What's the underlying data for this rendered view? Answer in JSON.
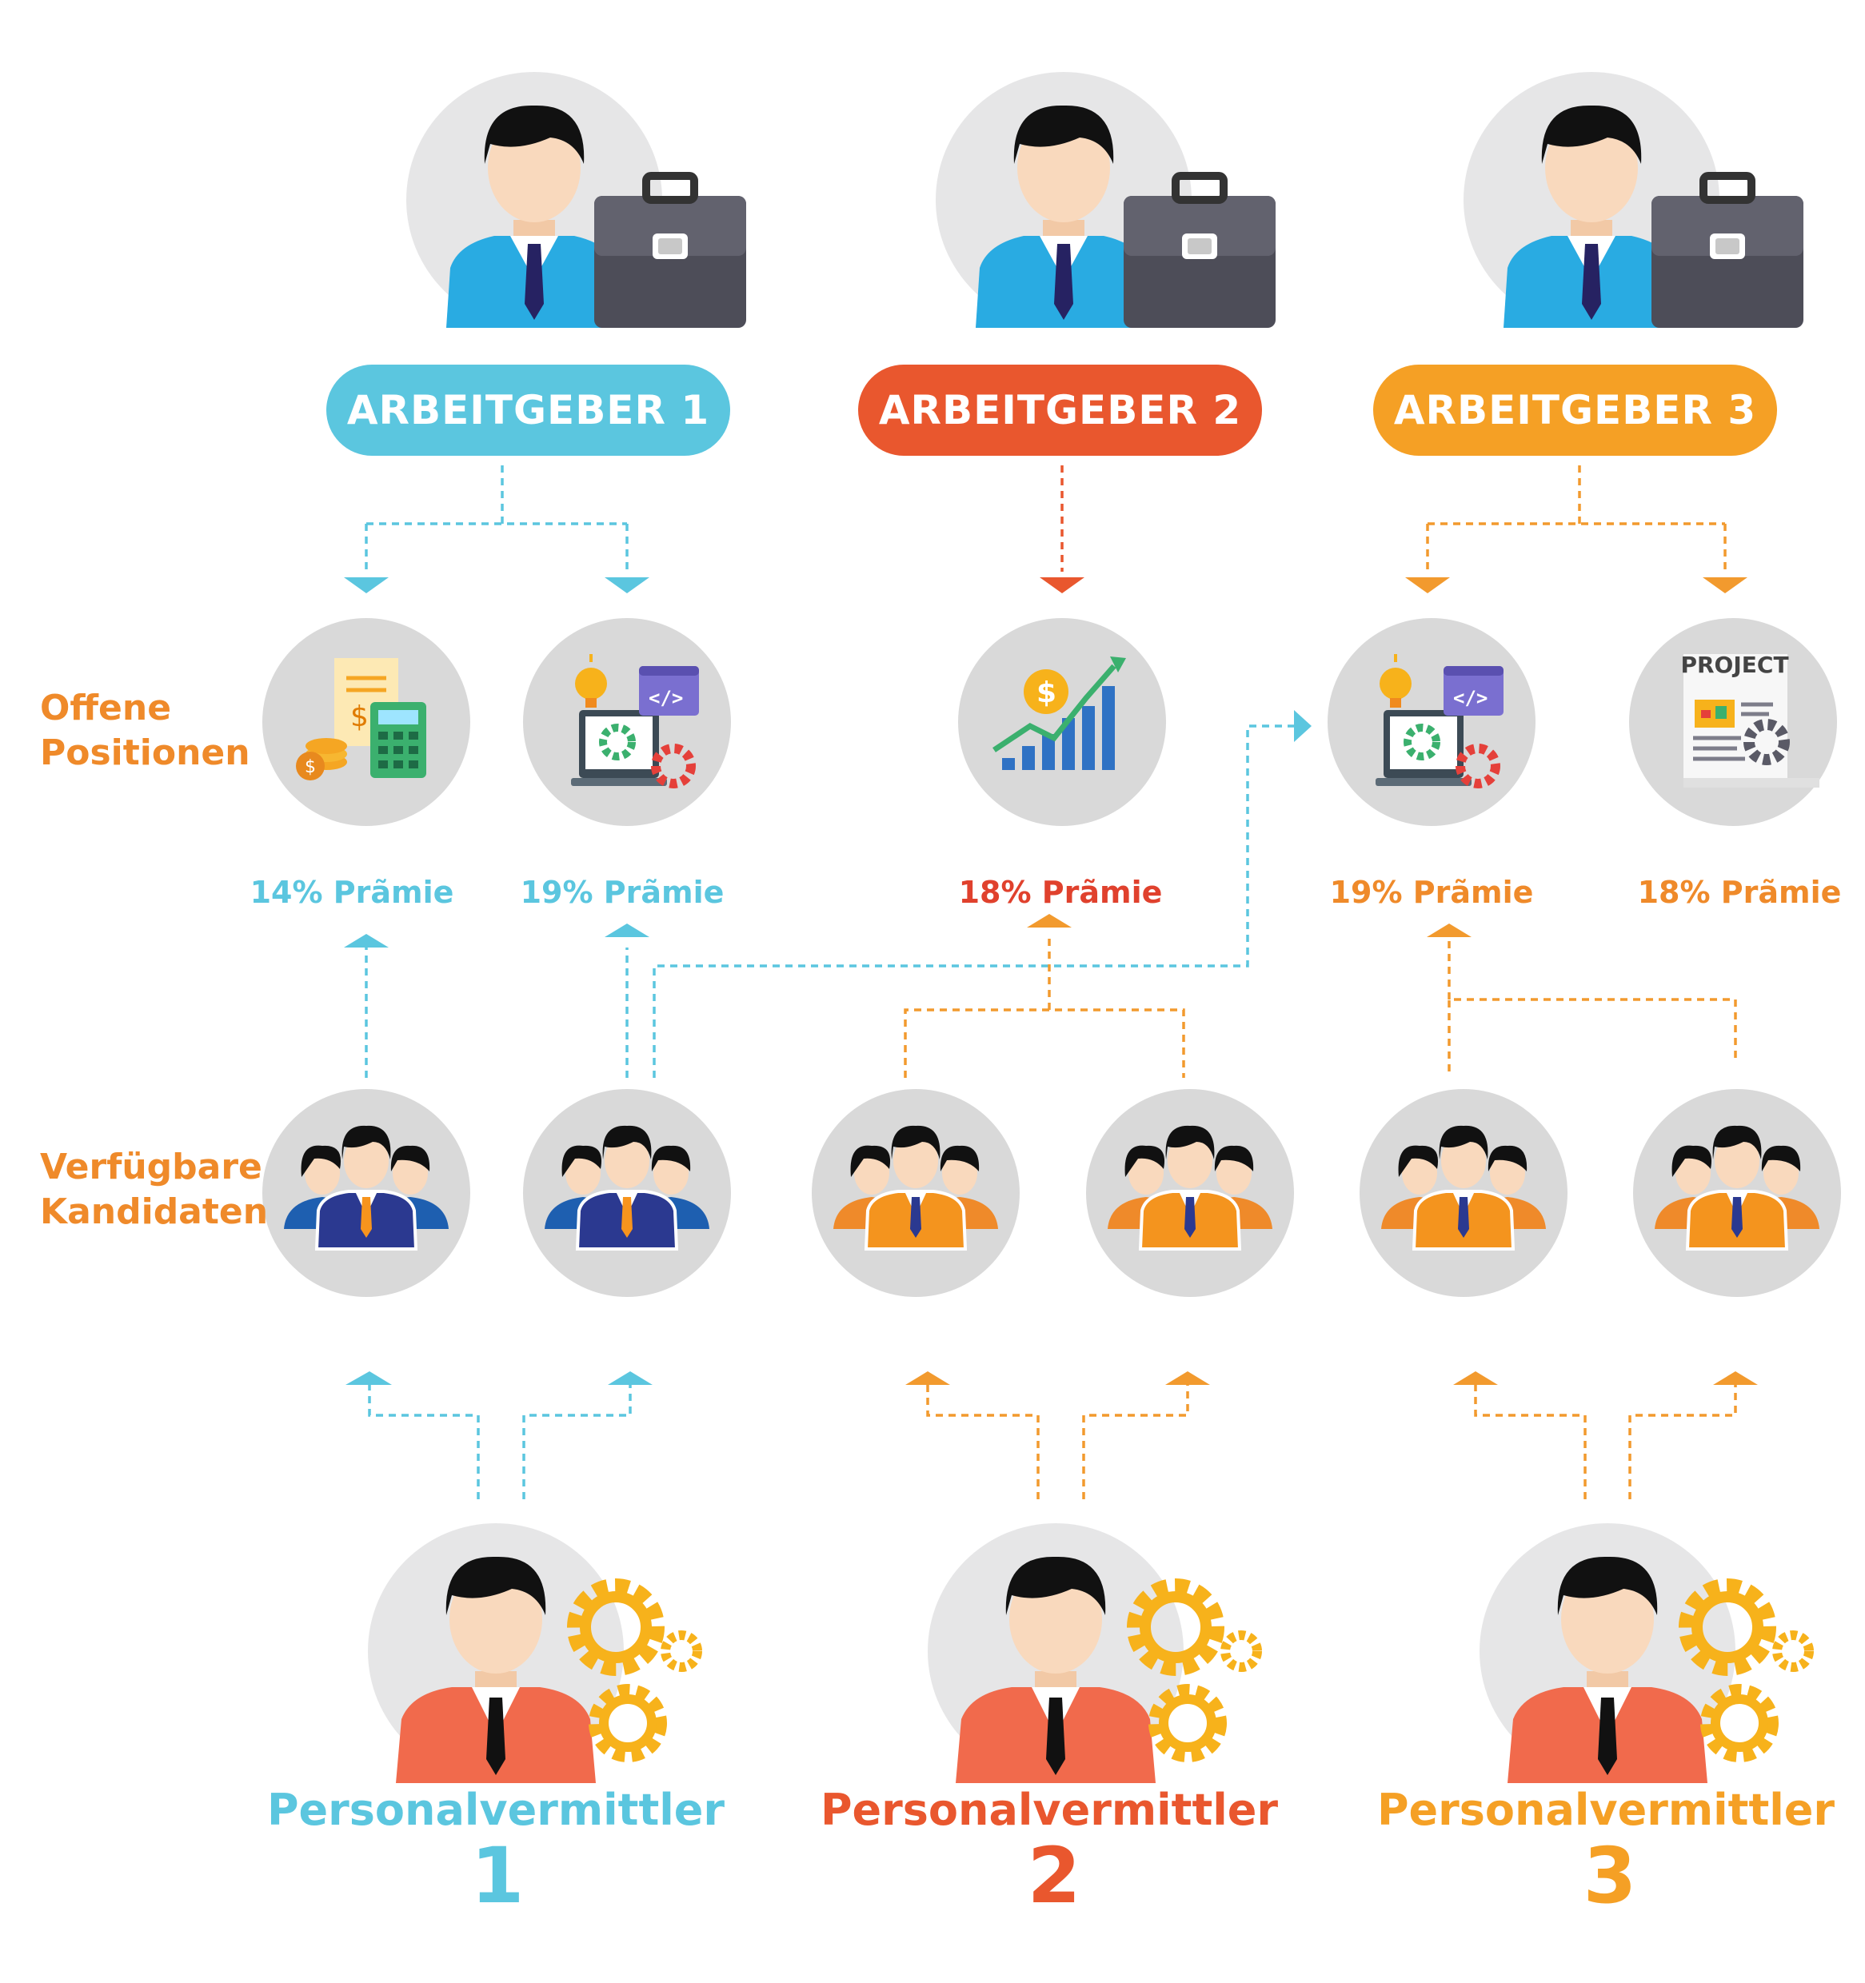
{
  "labels": {
    "open_positions": [
      "Offene",
      "Positionen"
    ],
    "available_candidates": [
      "Verfügbare",
      "Kandidaten"
    ]
  },
  "employers": [
    {
      "label": "ARBEITGEBER 1",
      "color": "#5bc6df"
    },
    {
      "label": "ARBEITGEBER 2",
      "color": "#e9572e"
    },
    {
      "label": "ARBEITGEBER 3",
      "color": "#f5a025"
    }
  ],
  "positions": [
    {
      "icon": "finance-calculator-icon",
      "bonus": "14% Prãmie",
      "color": "#5bc6df"
    },
    {
      "icon": "developer-laptop-icon",
      "bonus": "19% Prãmie",
      "color": "#5bc6df"
    },
    {
      "icon": "growth-chart-icon",
      "bonus": "18% Prãmie",
      "color": "#e0412d"
    },
    {
      "icon": "developer-laptop-icon",
      "bonus": "19% Prãmie",
      "color": "#ef8a2a"
    },
    {
      "icon": "project-document-icon",
      "bonus": "18% Prãmie",
      "color": "#ef8a2a",
      "project_text": "PROJECT"
    }
  ],
  "candidate_groups": [
    {
      "icon": "candidate-group-blue-icon",
      "suit_color": "#2b3990"
    },
    {
      "icon": "candidate-group-blue-icon",
      "suit_color": "#2b3990"
    },
    {
      "icon": "candidate-group-orange-icon",
      "suit_color": "#f4941e"
    },
    {
      "icon": "candidate-group-orange-icon",
      "suit_color": "#f4941e"
    },
    {
      "icon": "candidate-group-orange-icon",
      "suit_color": "#f4941e"
    },
    {
      "icon": "candidate-group-orange-icon",
      "suit_color": "#f4941e"
    }
  ],
  "recruiters": [
    {
      "name": "Personalvermittler",
      "number": "1",
      "color": "#5bc6df"
    },
    {
      "name": "Personalvermittler",
      "number": "2",
      "color": "#e9572e"
    },
    {
      "name": "Personalvermittler",
      "number": "3",
      "color": "#f5a025"
    }
  ],
  "colors": {
    "blue": "#5bc6df",
    "red": "#e9572e",
    "orange": "#f5a025",
    "connector_orange": "#f29a2e",
    "circle_bg": "#d9d9d9",
    "label_orange": "#ef8a2a"
  }
}
